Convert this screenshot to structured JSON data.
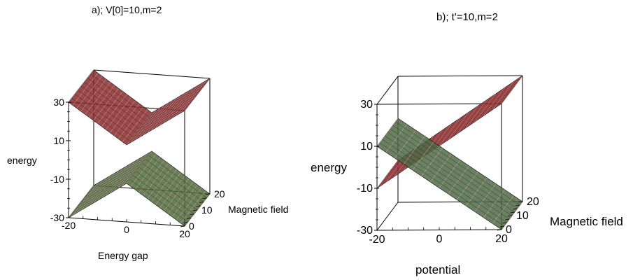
{
  "chart_data": [
    {
      "type": "surface3d",
      "title": "a); V[0]=10,m=2",
      "xlabel": "Energy gap",
      "ylabel": "Magnetic field",
      "zlabel": "energy",
      "x_ticks": [
        "-20",
        "0",
        "20"
      ],
      "y_ticks": [
        "0",
        "10",
        "20"
      ],
      "z_ticks": [
        "30",
        "10",
        "-10",
        "-30"
      ],
      "xlim": [
        -20,
        20
      ],
      "ylim": [
        0,
        20
      ],
      "zlim": [
        -30,
        30
      ],
      "series": [
        {
          "points": [
            [
              -20,
              30
            ],
            [
              0,
              10
            ],
            [
              20,
              30
            ]
          ],
          "color": "#8a2a2a"
        },
        {
          "points": [
            [
              -20,
              -30
            ],
            [
              0,
              -10
            ],
            [
              20,
              -30
            ]
          ],
          "color": "#4f6a3c"
        }
      ]
    },
    {
      "type": "surface3d",
      "title": "b); t'=10,m=2",
      "xlabel": "potential",
      "ylabel": "Magnetic field",
      "zlabel": "energy",
      "x_ticks": [
        "-20",
        "0",
        "20"
      ],
      "y_ticks": [
        "0",
        "10",
        "20"
      ],
      "z_ticks": [
        "30",
        "10",
        "-10",
        "-30"
      ],
      "xlim": [
        -20,
        20
      ],
      "ylim": [
        0,
        20
      ],
      "zlim": [
        -30,
        30
      ],
      "series": [
        {
          "points": [
            [
              -20,
              -10
            ],
            [
              20,
              30
            ]
          ],
          "color": "#9b2a2a"
        },
        {
          "points": [
            [
              -20,
              10
            ],
            [
              20,
              -30
            ]
          ],
          "color": "#4f6a45"
        }
      ]
    }
  ]
}
